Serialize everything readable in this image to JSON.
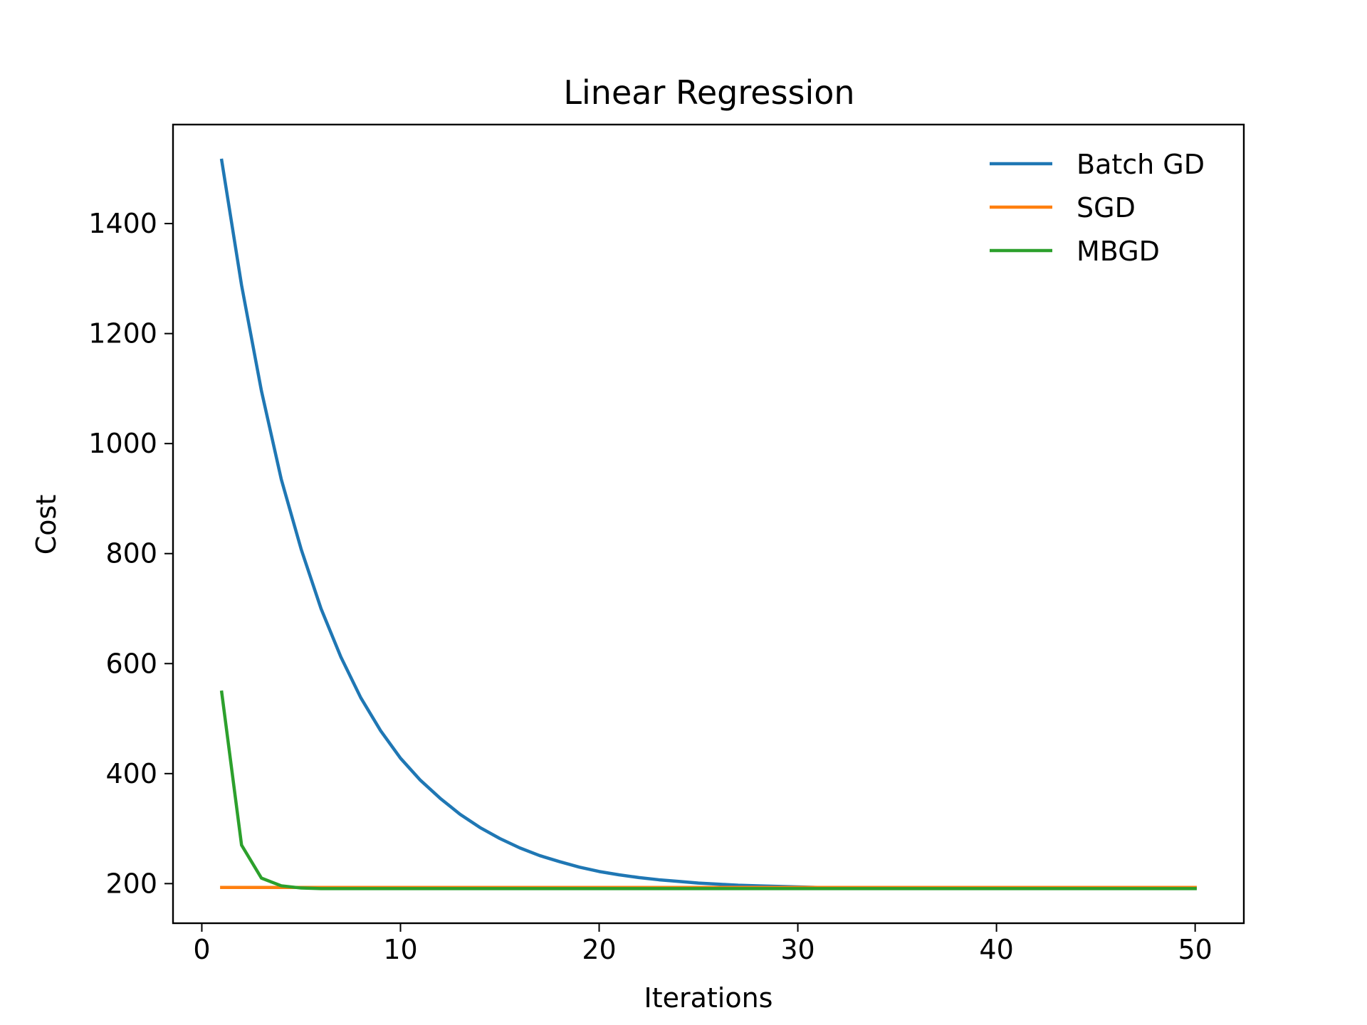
{
  "chart_data": {
    "type": "line",
    "title": "Linear Regression",
    "xlabel": "Iterations",
    "ylabel": "Cost",
    "xlim": [
      -1.45,
      52.45
    ],
    "ylim": [
      128,
      1580
    ],
    "xticks": [
      0,
      10,
      20,
      30,
      40,
      50
    ],
    "yticks": [
      200,
      400,
      600,
      800,
      1000,
      1200,
      1400
    ],
    "grid": false,
    "legend_position": "top-right",
    "x": [
      1,
      2,
      3,
      4,
      5,
      6,
      7,
      8,
      9,
      10,
      11,
      12,
      13,
      14,
      15,
      16,
      17,
      18,
      19,
      20,
      21,
      22,
      23,
      24,
      25,
      26,
      27,
      28,
      29,
      30,
      31,
      32,
      33,
      34,
      35,
      36,
      37,
      38,
      39,
      40,
      41,
      42,
      43,
      44,
      45,
      46,
      47,
      48,
      49,
      50
    ],
    "series": [
      {
        "name": "Batch GD",
        "color": "#1f77b4",
        "values": [
          1515,
          1288,
          1096,
          935,
          808,
          700,
          612,
          538,
          478,
          428,
          388,
          355,
          326,
          302,
          282,
          265,
          251,
          240,
          230,
          222,
          216,
          211,
          207,
          204,
          201,
          199,
          197,
          196,
          195,
          194,
          193,
          193,
          192,
          192,
          192,
          192,
          192,
          192,
          192,
          192,
          192,
          192,
          192,
          192,
          192,
          192,
          192,
          192,
          192,
          192
        ]
      },
      {
        "name": "SGD",
        "color": "#ff7f0e",
        "values": [
          193,
          193,
          193,
          193,
          193,
          193,
          193,
          193,
          193,
          193,
          193,
          193,
          193,
          193,
          193,
          193,
          193,
          193,
          193,
          193,
          193,
          193,
          193,
          193,
          193,
          193,
          193,
          193,
          193,
          193,
          193,
          193,
          193,
          193,
          193,
          193,
          193,
          193,
          193,
          193,
          193,
          193,
          193,
          193,
          193,
          193,
          193,
          193,
          193,
          193
        ]
      },
      {
        "name": "MBGD",
        "color": "#2ca02c",
        "values": [
          548,
          270,
          210,
          196,
          192,
          191,
          191,
          191,
          191,
          191,
          191,
          191,
          191,
          191,
          191,
          191,
          191,
          191,
          191,
          191,
          191,
          191,
          191,
          191,
          191,
          191,
          191,
          191,
          191,
          191,
          191,
          191,
          191,
          191,
          191,
          191,
          191,
          191,
          191,
          191,
          191,
          191,
          191,
          191,
          191,
          191,
          191,
          191,
          191,
          191
        ]
      }
    ]
  }
}
